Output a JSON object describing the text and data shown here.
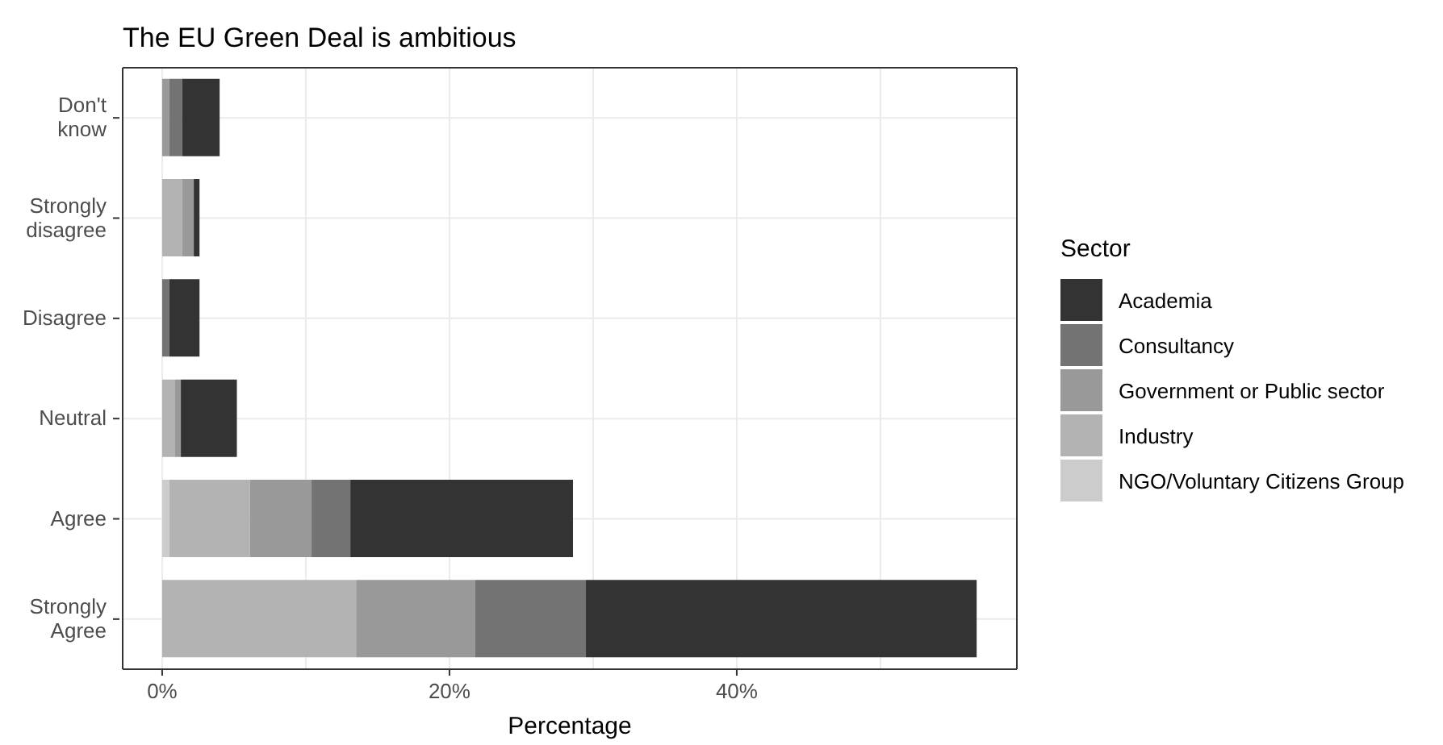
{
  "chart_data": {
    "type": "bar",
    "orientation": "horizontal",
    "stacked": true,
    "title": "The EU Green Deal is ambitious",
    "xlabel": "Percentage",
    "legend_title": "Sector",
    "legend": "right",
    "grid": true,
    "categories": [
      "Don't know",
      "Strongly disagree",
      "Disagree",
      "Neutral",
      "Agree",
      "Strongly Agree"
    ],
    "xlim": [
      -2.75,
      59.5
    ],
    "xticks": [
      {
        "value": 0,
        "label": "0%"
      },
      {
        "value": 10,
        "label": null
      },
      {
        "value": 20,
        "label": "20%"
      },
      {
        "value": 30,
        "label": null
      },
      {
        "value": 40,
        "label": "40%"
      },
      {
        "value": 50,
        "label": null
      }
    ],
    "series": [
      {
        "name": "NGO/Voluntary Citizens Group",
        "color": "#cccccc",
        "values": [
          0,
          0,
          0,
          0,
          0.5,
          0
        ]
      },
      {
        "name": "Industry",
        "color": "#b3b3b3",
        "values": [
          0,
          1.4,
          0,
          0.9,
          5.6,
          13.5
        ]
      },
      {
        "name": "Government or Public sector",
        "color": "#999999",
        "values": [
          0.5,
          0.8,
          0,
          0.4,
          4.3,
          8.3
        ]
      },
      {
        "name": "Consultancy",
        "color": "#737373",
        "values": [
          0.9,
          0,
          0.5,
          0,
          2.7,
          7.7
        ]
      },
      {
        "name": "Academia",
        "color": "#333333",
        "values": [
          2.6,
          0.4,
          2.1,
          3.9,
          15.5,
          27.2
        ]
      }
    ]
  }
}
